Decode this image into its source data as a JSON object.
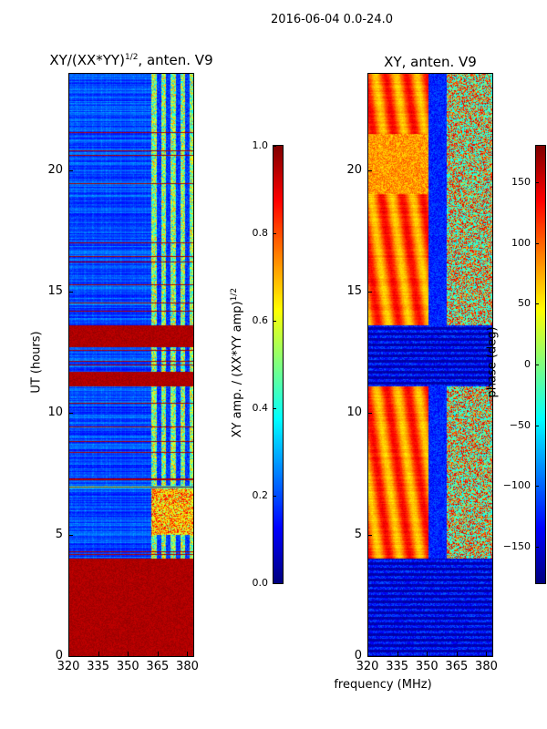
{
  "chart_data": [
    {
      "type": "heatmap",
      "title": "XY/(XX*YY)^1/2, anten. V9",
      "title_main": "XY/(XX*YY)",
      "title_sup": "1/2",
      "title_tail": ", anten. V9",
      "xlabel": "",
      "ylabel": "UT (hours)",
      "xlim": [
        320,
        383
      ],
      "ylim": [
        0,
        24
      ],
      "xticks": [
        "320",
        "335",
        "350",
        "365",
        "380"
      ],
      "yticks": [
        "0",
        "5",
        "10",
        "15",
        "20"
      ],
      "colorbar": {
        "label": "XY amp. / (XX*YY amp)^1/2",
        "label_main": "XY amp. / (XX*YY amp)",
        "label_sup": "1/2",
        "range": [
          0.0,
          1.0
        ],
        "ticks": [
          "0.0",
          "0.2",
          "0.4",
          "0.6",
          "0.8",
          "1.0"
        ],
        "colormap": "jet"
      },
      "saturated_time_bands": [
        [
          0.0,
          4.0
        ],
        [
          11.1,
          11.7
        ],
        [
          12.7,
          13.6
        ]
      ],
      "bright_freq_range": [
        362,
        383
      ],
      "bright_time_band": [
        6.9,
        7.0
      ]
    },
    {
      "type": "heatmap",
      "title": "XY, anten. V9",
      "xlabel": "frequency (MHz)",
      "ylabel": "",
      "xlim": [
        320,
        383
      ],
      "ylim": [
        0,
        24
      ],
      "xticks": [
        "320",
        "335",
        "350",
        "365",
        "380"
      ],
      "yticks": [
        "0",
        "5",
        "10",
        "15",
        "20"
      ],
      "colorbar": {
        "label": "phase (deg)",
        "range": [
          -180,
          180
        ],
        "ticks": [
          "150",
          "100",
          "50",
          "0",
          "−50",
          "−100",
          "−150"
        ],
        "colormap": "jet"
      },
      "masked_time_bands": [
        [
          0.0,
          4.0
        ],
        [
          11.1,
          13.6
        ]
      ]
    }
  ],
  "suptitle": "2016-06-04 0.0-24.0"
}
